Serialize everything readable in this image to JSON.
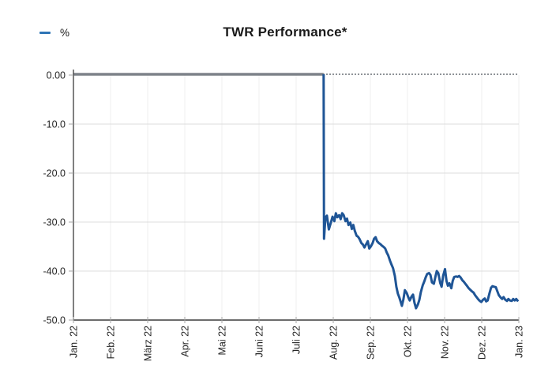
{
  "title": "TWR Performance*",
  "legend": {
    "label": "%",
    "swatch_color": "#2e74b5"
  },
  "chart_data": {
    "type": "line",
    "title": "TWR Performance*",
    "unit": "%",
    "x_axis": {
      "tick_labels": [
        "Jan. 22",
        "Feb. 22",
        "März 22",
        "Apr. 22",
        "Mai 22",
        "Juni 22",
        "Juli 22",
        "Aug. 22",
        "Sep. 22",
        "Okt. 22",
        "Nov. 22",
        "Dez. 22",
        "Jan. 23"
      ],
      "ticks_months": [
        0,
        1,
        2,
        3,
        4,
        5,
        6,
        7,
        8,
        9,
        10,
        11,
        12
      ]
    },
    "y_axis": {
      "tick_labels": [
        "0.00",
        "-10.0",
        "-20.0",
        "-30.0",
        "-40.0",
        "-50.0"
      ],
      "ticks": [
        0,
        -10,
        -20,
        -30,
        -40,
        -50
      ],
      "ylim": [
        -50,
        0
      ]
    },
    "grid": {
      "horizontal": true,
      "vertical": true
    },
    "zero_reference_line": {
      "value": 0,
      "style": "dotted"
    },
    "series": [
      {
        "name": "%",
        "flat_segment": {
          "from_month": 0,
          "to_month": 6.74,
          "value": 0.0
        },
        "drop_month": 6.74,
        "points": [
          [
            6.75,
            -33.4
          ],
          [
            6.79,
            -29.0
          ],
          [
            6.83,
            -28.7
          ],
          [
            6.88,
            -31.5
          ],
          [
            6.94,
            -30.0
          ],
          [
            6.98,
            -28.9
          ],
          [
            7.03,
            -29.8
          ],
          [
            7.07,
            -28.2
          ],
          [
            7.11,
            -29.0
          ],
          [
            7.16,
            -28.6
          ],
          [
            7.2,
            -29.4
          ],
          [
            7.24,
            -28.2
          ],
          [
            7.28,
            -28.6
          ],
          [
            7.33,
            -29.8
          ],
          [
            7.37,
            -29.3
          ],
          [
            7.41,
            -30.6
          ],
          [
            7.46,
            -30.1
          ],
          [
            7.5,
            -31.4
          ],
          [
            7.54,
            -30.6
          ],
          [
            7.58,
            -31.8
          ],
          [
            7.63,
            -32.8
          ],
          [
            7.67,
            -33.0
          ],
          [
            7.71,
            -33.5
          ],
          [
            7.76,
            -34.3
          ],
          [
            7.8,
            -34.6
          ],
          [
            7.84,
            -35.2
          ],
          [
            7.88,
            -34.6
          ],
          [
            7.93,
            -33.9
          ],
          [
            7.97,
            -35.4
          ],
          [
            8.01,
            -35.0
          ],
          [
            8.06,
            -34.3
          ],
          [
            8.1,
            -33.4
          ],
          [
            8.14,
            -33.1
          ],
          [
            8.18,
            -33.9
          ],
          [
            8.23,
            -34.3
          ],
          [
            8.27,
            -34.5
          ],
          [
            8.31,
            -34.8
          ],
          [
            8.36,
            -35.1
          ],
          [
            8.4,
            -35.4
          ],
          [
            8.44,
            -36.2
          ],
          [
            8.48,
            -36.8
          ],
          [
            8.53,
            -37.9
          ],
          [
            8.57,
            -38.7
          ],
          [
            8.61,
            -39.4
          ],
          [
            8.66,
            -41.0
          ],
          [
            8.7,
            -43.2
          ],
          [
            8.74,
            -44.6
          ],
          [
            8.78,
            -45.4
          ],
          [
            8.83,
            -46.6
          ],
          [
            8.85,
            -47.1
          ],
          [
            8.89,
            -45.8
          ],
          [
            8.93,
            -43.9
          ],
          [
            8.98,
            -44.5
          ],
          [
            9.02,
            -45.3
          ],
          [
            9.06,
            -46.0
          ],
          [
            9.11,
            -45.2
          ],
          [
            9.15,
            -44.8
          ],
          [
            9.19,
            -46.5
          ],
          [
            9.23,
            -47.6
          ],
          [
            9.28,
            -46.8
          ],
          [
            9.32,
            -45.9
          ],
          [
            9.36,
            -44.3
          ],
          [
            9.41,
            -42.9
          ],
          [
            9.45,
            -42.2
          ],
          [
            9.49,
            -41.3
          ],
          [
            9.53,
            -40.6
          ],
          [
            9.58,
            -40.4
          ],
          [
            9.62,
            -40.8
          ],
          [
            9.66,
            -42.3
          ],
          [
            9.71,
            -42.6
          ],
          [
            9.75,
            -41.2
          ],
          [
            9.79,
            -40.0
          ],
          [
            9.83,
            -40.4
          ],
          [
            9.88,
            -42.4
          ],
          [
            9.92,
            -43.2
          ],
          [
            9.96,
            -41.0
          ],
          [
            10.01,
            -39.6
          ],
          [
            10.05,
            -42.0
          ],
          [
            10.09,
            -43.0
          ],
          [
            10.13,
            -42.5
          ],
          [
            10.18,
            -43.5
          ],
          [
            10.22,
            -42.0
          ],
          [
            10.26,
            -41.2
          ],
          [
            10.31,
            -41.1
          ],
          [
            10.35,
            -41.2
          ],
          [
            10.39,
            -41.0
          ],
          [
            10.43,
            -41.3
          ],
          [
            10.48,
            -41.9
          ],
          [
            10.52,
            -42.2
          ],
          [
            10.56,
            -42.6
          ],
          [
            10.61,
            -43.1
          ],
          [
            10.65,
            -43.5
          ],
          [
            10.69,
            -43.8
          ],
          [
            10.73,
            -44.1
          ],
          [
            10.78,
            -44.4
          ],
          [
            10.82,
            -44.9
          ],
          [
            10.86,
            -45.3
          ],
          [
            10.91,
            -45.8
          ],
          [
            10.95,
            -46.1
          ],
          [
            10.99,
            -46.3
          ],
          [
            11.03,
            -45.9
          ],
          [
            11.08,
            -45.6
          ],
          [
            11.12,
            -46.2
          ],
          [
            11.16,
            -46.0
          ],
          [
            11.21,
            -44.5
          ],
          [
            11.25,
            -43.4
          ],
          [
            11.29,
            -43.1
          ],
          [
            11.33,
            -43.2
          ],
          [
            11.38,
            -43.3
          ],
          [
            11.42,
            -44.1
          ],
          [
            11.46,
            -44.9
          ],
          [
            11.51,
            -45.4
          ],
          [
            11.55,
            -45.7
          ],
          [
            11.59,
            -45.3
          ],
          [
            11.63,
            -45.8
          ],
          [
            11.68,
            -46.1
          ],
          [
            11.72,
            -45.7
          ],
          [
            11.76,
            -46.0
          ],
          [
            11.81,
            -46.1
          ],
          [
            11.85,
            -45.7
          ],
          [
            11.89,
            -46.0
          ],
          [
            11.93,
            -45.7
          ],
          [
            11.98,
            -46.2
          ]
        ]
      }
    ],
    "colors": {
      "line": "#1f5596",
      "flat_line": "#7d8289",
      "zero_line": "#8f9398",
      "grid_horizontal": "#dcdcdc",
      "grid_vertical": "#efefef",
      "axis": "#3c3c3c",
      "tick": "#a6a6a6",
      "label": "#262626",
      "title": "#1a1a1a"
    }
  }
}
